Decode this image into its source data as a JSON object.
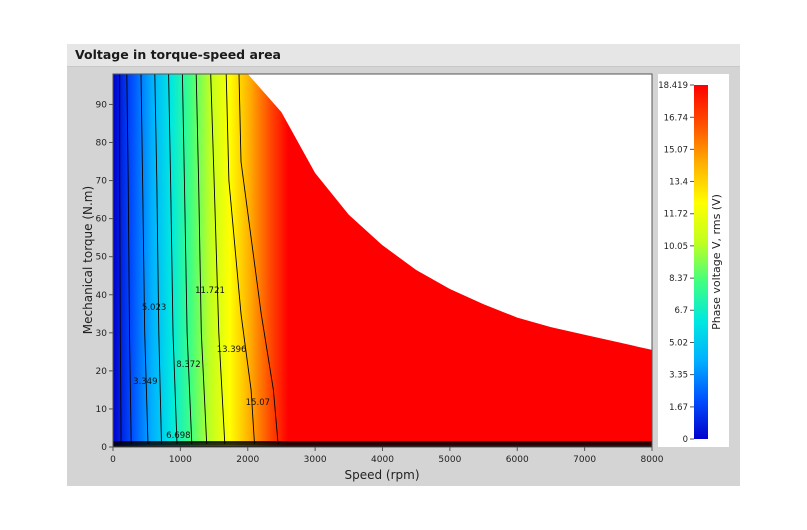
{
  "panel": {
    "title": "Voltage in torque-speed area"
  },
  "chart_data": {
    "type": "heatmap",
    "title": "Voltage in torque-speed area",
    "xlabel": "Speed (rpm)",
    "ylabel": "Mechanical torque (N.m)",
    "xlim": [
      0,
      8000
    ],
    "ylim": [
      0,
      98
    ],
    "xticks": [
      0,
      1000,
      2000,
      3000,
      4000,
      5000,
      6000,
      7000,
      8000
    ],
    "yticks": [
      0,
      10,
      20,
      30,
      40,
      50,
      60,
      70,
      80,
      90
    ],
    "colorbar": {
      "label": "Phase voltage V, rms (V)",
      "min": 0,
      "max": 18.419,
      "ticks": [
        "18.419",
        "16.74",
        "15.07",
        "13.4",
        "11.72",
        "10.05",
        "8.37",
        "6.7",
        "5.02",
        "3.35",
        "1.67",
        "0"
      ],
      "tick_values": [
        18.419,
        16.74,
        15.07,
        13.4,
        11.72,
        10.05,
        8.37,
        6.7,
        5.02,
        3.35,
        1.67,
        0
      ],
      "colors": [
        "#0000cc",
        "#0050ff",
        "#00b0ff",
        "#00e8e0",
        "#40ff80",
        "#c0ff20",
        "#ffff00",
        "#ffb000",
        "#ff5000",
        "#ff0000"
      ]
    },
    "max_torque_envelope": {
      "speed": [
        0,
        2000,
        2500,
        3000,
        3500,
        4000,
        4500,
        5000,
        5500,
        6000,
        6500,
        7000,
        7500,
        8000
      ],
      "torque": [
        98,
        98,
        88,
        72,
        61,
        53,
        46.5,
        41.5,
        37.5,
        34,
        31.5,
        29.5,
        27.5,
        25.5
      ]
    },
    "voltage_saturation_speed": 2600,
    "contours": [
      {
        "label": "1.675",
        "x": [
          120,
          108,
          100,
          100
        ],
        "y": [
          0.8,
          30,
          70,
          98
        ]
      },
      {
        "label": "3.349",
        "x": [
          270,
          245,
          225,
          205
        ],
        "y": [
          0.8,
          30,
          70,
          98
        ]
      },
      {
        "label": "5.023",
        "x": [
          520,
          470,
          440,
          415
        ],
        "y": [
          0.8,
          30,
          70,
          98
        ]
      },
      {
        "label": "6.698",
        "x": [
          720,
          680,
          650,
          620
        ],
        "y": [
          0.8,
          30,
          70,
          98
        ]
      },
      {
        "label": "8.372",
        "x": [
          950,
          890,
          855,
          825
        ],
        "y": [
          0.8,
          30,
          70,
          98
        ]
      },
      {
        "label": "10.046",
        "x": [
          1170,
          1100,
          1060,
          1030
        ],
        "y": [
          0.8,
          30,
          70,
          98
        ]
      },
      {
        "label": "11.721",
        "x": [
          1390,
          1310,
          1270,
          1235
        ],
        "y": [
          0.8,
          30,
          70,
          98
        ]
      },
      {
        "label": "13.396",
        "x": [
          1660,
          1570,
          1500,
          1450
        ],
        "y": [
          0.8,
          30,
          70,
          98
        ]
      },
      {
        "label": "15.07",
        "x": [
          2100,
          2050,
          1900,
          1720,
          1680
        ],
        "y": [
          0.8,
          15,
          35,
          70,
          98
        ]
      },
      {
        "label": "16.744",
        "x": [
          2450,
          2380,
          2200,
          1900,
          1870
        ],
        "y": [
          0.8,
          15,
          35,
          75,
          98
        ]
      }
    ],
    "contour_labels": [
      {
        "text": "3.349",
        "x": 480,
        "y": 16.5
      },
      {
        "text": "5.023",
        "x": 610,
        "y": 36
      },
      {
        "text": "8.372",
        "x": 1120,
        "y": 21
      },
      {
        "text": "11.721",
        "x": 1440,
        "y": 40.5
      },
      {
        "text": "13.396",
        "x": 1760,
        "y": 25
      },
      {
        "text": "15.07",
        "x": 2150,
        "y": 11
      },
      {
        "text": "6.698",
        "x": 970,
        "y": 2.4
      }
    ]
  }
}
